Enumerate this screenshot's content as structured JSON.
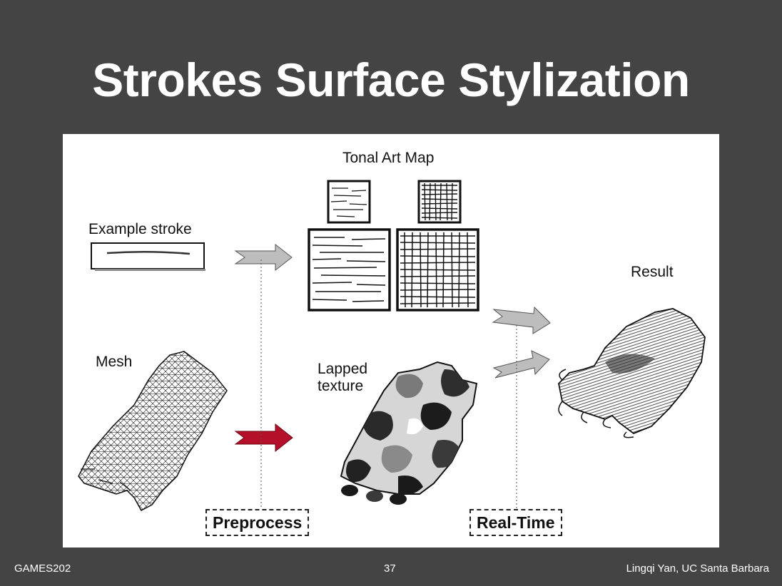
{
  "slide": {
    "title": "Strokes Surface Stylization"
  },
  "figure": {
    "tonal_art_map_label": "Tonal Art Map",
    "example_stroke_label": "Example stroke",
    "mesh_label": "Mesh",
    "lapped_texture_label": "Lapped\ntexture",
    "result_label": "Result",
    "preprocess_label": "Preprocess",
    "realtime_label": "Real-Time",
    "colors": {
      "gray_arrow": "#bdbdbd",
      "red_arrow": "#b5102a",
      "ink": "#111111"
    },
    "icons": [
      "mesh-hand-icon",
      "camouflage-hand-icon",
      "hatched-hand-icon",
      "hatching-texture-icon",
      "stroke-icon"
    ]
  },
  "footer": {
    "left": "GAMES202",
    "center": "37",
    "right": "Lingqi Yan, UC Santa Barbara"
  }
}
